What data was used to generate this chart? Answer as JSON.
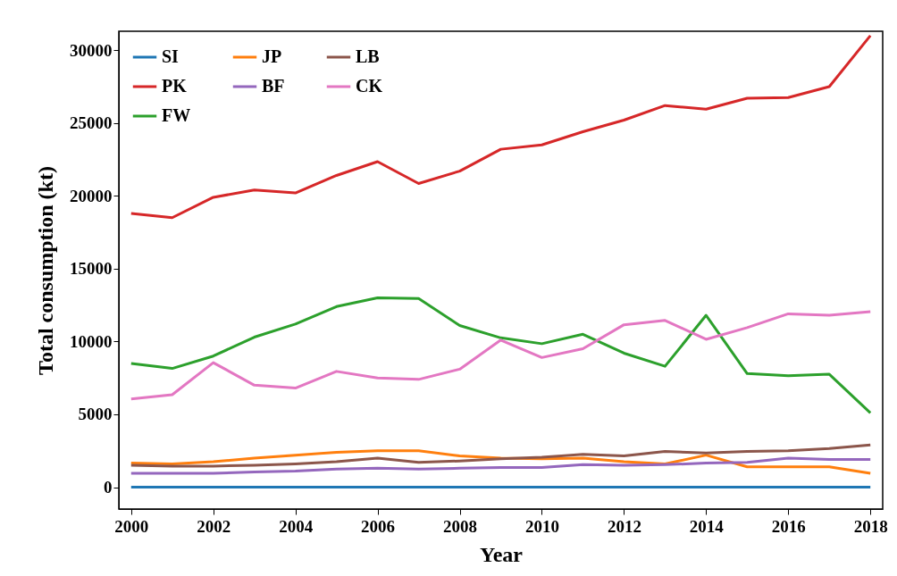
{
  "chart_data": {
    "type": "line",
    "xlabel": "Year",
    "ylabel": "Total consumption (kt)",
    "x": [
      2000,
      2001,
      2002,
      2003,
      2004,
      2005,
      2006,
      2007,
      2008,
      2009,
      2010,
      2011,
      2012,
      2013,
      2014,
      2015,
      2016,
      2017,
      2018
    ],
    "series": [
      {
        "name": "SI",
        "color": "#1f77b4",
        "values": [
          0,
          0,
          0,
          0,
          0,
          0,
          0,
          0,
          0,
          0,
          0,
          0,
          0,
          0,
          0,
          0,
          0,
          0,
          0
        ]
      },
      {
        "name": "JP",
        "color": "#ff7f0e",
        "values": [
          1650,
          1600,
          1750,
          2000,
          2200,
          2400,
          2500,
          2500,
          2150,
          2000,
          1950,
          2000,
          1750,
          1600,
          2200,
          1400,
          1400,
          1400,
          950
        ]
      },
      {
        "name": "FW",
        "color": "#2ca02c",
        "values": [
          8500,
          8150,
          9000,
          10300,
          11200,
          12400,
          13000,
          12950,
          11100,
          10250,
          9850,
          10500,
          9200,
          8300,
          11800,
          7800,
          7650,
          7750,
          5100
        ]
      },
      {
        "name": "PK",
        "color": "#d62728",
        "values": [
          18800,
          18500,
          19900,
          20400,
          20200,
          21400,
          22350,
          20850,
          21700,
          23200,
          23500,
          24400,
          25200,
          26200,
          25950,
          26700,
          26750,
          27500,
          31000
        ]
      },
      {
        "name": "BF",
        "color": "#9467bd",
        "values": [
          950,
          950,
          950,
          1050,
          1100,
          1250,
          1300,
          1250,
          1300,
          1350,
          1350,
          1550,
          1500,
          1550,
          1650,
          1700,
          2000,
          1900,
          1900
        ]
      },
      {
        "name": "LB",
        "color": "#8c564b",
        "values": [
          1500,
          1450,
          1450,
          1500,
          1600,
          1750,
          2000,
          1700,
          1800,
          1950,
          2050,
          2250,
          2150,
          2450,
          2350,
          2450,
          2500,
          2650,
          2900
        ]
      },
      {
        "name": "CK",
        "color": "#e377c2",
        "values": [
          6050,
          6350,
          8550,
          7000,
          6800,
          7950,
          7500,
          7400,
          8100,
          10100,
          8900,
          9500,
          11150,
          11450,
          10150,
          10950,
          11900,
          11800,
          12050
        ]
      }
    ],
    "xlim": [
      1999.7,
      2018.3
    ],
    "xticks": [
      2000,
      2002,
      2004,
      2006,
      2008,
      2010,
      2012,
      2014,
      2016,
      2018
    ],
    "ylim": [
      -1500,
      31300
    ],
    "yticks": [
      0,
      5000,
      10000,
      15000,
      20000,
      25000,
      30000
    ],
    "grid": false,
    "legend": "top left",
    "marker": "none",
    "line_style": "solid"
  }
}
